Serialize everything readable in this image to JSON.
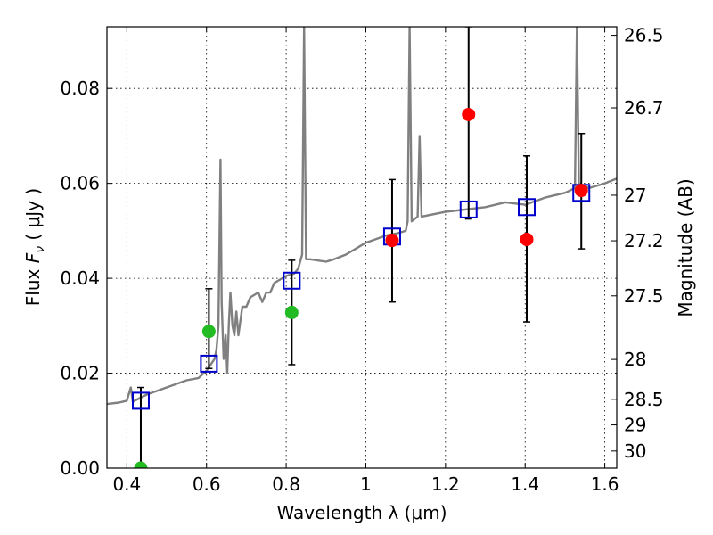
{
  "chart_data": {
    "type": "scatter",
    "xlabel": "Wavelength  λ (μm)",
    "ylabel": "Flux  Fν  ( μJy )",
    "ylabel_parts": {
      "prefix": "Flux  ",
      "symbol": "F",
      "subscript": "ν",
      "suffix": "  ( μJy )"
    },
    "y2label": "Magnitude (AB)",
    "xlim": [
      0.35,
      1.63
    ],
    "ylim": [
      0.0,
      0.093
    ],
    "x_ticks": [
      0.4,
      0.6,
      0.8,
      1.0,
      1.2,
      1.4,
      1.6
    ],
    "x_tick_labels": [
      "0.4",
      "0.6",
      "0.8",
      "1",
      "1.2",
      "1.4",
      "1.6"
    ],
    "y_ticks": [
      0.0,
      0.02,
      0.04,
      0.06,
      0.08
    ],
    "y_tick_labels": [
      "0.00",
      "0.02",
      "0.04",
      "0.06",
      "0.08"
    ],
    "y2_ticks": [
      {
        "label": "26.5",
        "flux": 0.0912
      },
      {
        "label": "26.7",
        "flux": 0.0759
      },
      {
        "label": "27",
        "flux": 0.0575
      },
      {
        "label": "27.2",
        "flux": 0.0479
      },
      {
        "label": "27.5",
        "flux": 0.0363
      },
      {
        "label": "28",
        "flux": 0.0229
      },
      {
        "label": "28.5",
        "flux": 0.0145
      },
      {
        "label": "29",
        "flux": 0.0091
      },
      {
        "label": "30",
        "flux": 0.0036
      }
    ],
    "grid": true,
    "colors": {
      "model": "#808080",
      "green": "#22bb22",
      "red": "#ff0000",
      "square": "#0000cc",
      "errorbar": "#000000"
    },
    "model_spectrum": [
      [
        0.35,
        0.0135
      ],
      [
        0.38,
        0.0138
      ],
      [
        0.4,
        0.0142
      ],
      [
        0.41,
        0.017
      ],
      [
        0.415,
        0.014
      ],
      [
        0.45,
        0.0155
      ],
      [
        0.5,
        0.017
      ],
      [
        0.55,
        0.0185
      ],
      [
        0.58,
        0.019
      ],
      [
        0.6,
        0.0205
      ],
      [
        0.62,
        0.023
      ],
      [
        0.625,
        0.025
      ],
      [
        0.63,
        0.03
      ],
      [
        0.635,
        0.065
      ],
      [
        0.638,
        0.035
      ],
      [
        0.643,
        0.023
      ],
      [
        0.648,
        0.028
      ],
      [
        0.652,
        0.02
      ],
      [
        0.656,
        0.03
      ],
      [
        0.66,
        0.037
      ],
      [
        0.665,
        0.03
      ],
      [
        0.67,
        0.028
      ],
      [
        0.675,
        0.033
      ],
      [
        0.68,
        0.028
      ],
      [
        0.69,
        0.034
      ],
      [
        0.7,
        0.034
      ],
      [
        0.71,
        0.036
      ],
      [
        0.73,
        0.037
      ],
      [
        0.74,
        0.035
      ],
      [
        0.75,
        0.037
      ],
      [
        0.76,
        0.037
      ],
      [
        0.77,
        0.039
      ],
      [
        0.8,
        0.0405
      ],
      [
        0.82,
        0.041
      ],
      [
        0.83,
        0.042
      ],
      [
        0.84,
        0.045
      ],
      [
        0.845,
        0.093
      ],
      [
        0.85,
        0.044
      ],
      [
        0.86,
        0.044
      ],
      [
        0.9,
        0.0435
      ],
      [
        0.92,
        0.044
      ],
      [
        0.95,
        0.045
      ],
      [
        1.0,
        0.0475
      ],
      [
        1.05,
        0.049
      ],
      [
        1.08,
        0.0495
      ],
      [
        1.1,
        0.05
      ],
      [
        1.105,
        0.052
      ],
      [
        1.11,
        0.093
      ],
      [
        1.115,
        0.052
      ],
      [
        1.13,
        0.053
      ],
      [
        1.135,
        0.07
      ],
      [
        1.14,
        0.053
      ],
      [
        1.2,
        0.054
      ],
      [
        1.25,
        0.0545
      ],
      [
        1.3,
        0.055
      ],
      [
        1.35,
        0.056
      ],
      [
        1.4,
        0.0555
      ],
      [
        1.45,
        0.057
      ],
      [
        1.5,
        0.058
      ],
      [
        1.525,
        0.059
      ],
      [
        1.53,
        0.093
      ],
      [
        1.535,
        0.06
      ],
      [
        1.56,
        0.059
      ],
      [
        1.6,
        0.06
      ],
      [
        1.63,
        0.061
      ]
    ],
    "squares": [
      {
        "x": 0.435,
        "y": 0.0142
      },
      {
        "x": 0.606,
        "y": 0.022
      },
      {
        "x": 0.814,
        "y": 0.0395
      },
      {
        "x": 1.066,
        "y": 0.0488
      },
      {
        "x": 1.258,
        "y": 0.0545
      },
      {
        "x": 1.404,
        "y": 0.055
      },
      {
        "x": 1.541,
        "y": 0.058
      }
    ],
    "points_green": [
      {
        "x": 0.435,
        "y": 0.0
      },
      {
        "x": 0.606,
        "y": 0.0288
      },
      {
        "x": 0.814,
        "y": 0.0328
      }
    ],
    "points_red": [
      {
        "x": 1.066,
        "y": 0.048
      },
      {
        "x": 1.258,
        "y": 0.0745
      },
      {
        "x": 1.404,
        "y": 0.0482
      },
      {
        "x": 1.541,
        "y": 0.0585
      }
    ],
    "errorbars": [
      {
        "x": 0.435,
        "low": 0.0,
        "high": 0.017
      },
      {
        "x": 0.606,
        "low": 0.021,
        "high": 0.0378
      },
      {
        "x": 0.814,
        "low": 0.0218,
        "high": 0.0438
      },
      {
        "x": 1.066,
        "low": 0.035,
        "high": 0.0608
      },
      {
        "x": 1.258,
        "low": 0.0525,
        "high": 0.093
      },
      {
        "x": 1.404,
        "low": 0.0308,
        "high": 0.0658
      },
      {
        "x": 1.541,
        "low": 0.0462,
        "high": 0.0705
      }
    ]
  }
}
